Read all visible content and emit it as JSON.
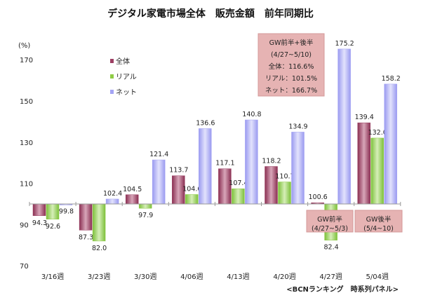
{
  "chart_data": {
    "type": "bar",
    "title": "デジタル家電市場全体　販売金額　前年同期比",
    "ylabel": "(%)",
    "ylim": [
      70,
      180
    ],
    "baseline": 100,
    "yticks": [
      70,
      90,
      110,
      130,
      150,
      170
    ],
    "legend_position": "top-left",
    "categories": [
      "3/16週",
      "3/23週",
      "3/30週",
      "4/06週",
      "4/13週",
      "4/20週",
      "4/27週",
      "5/04週"
    ],
    "series": [
      {
        "name": "全体",
        "color": "#9c3f63",
        "values": [
          94.3,
          87.3,
          104.5,
          113.7,
          117.1,
          118.2,
          100.6,
          139.4
        ]
      },
      {
        "name": "リアル",
        "color": "#8fcc45",
        "values": [
          92.6,
          82.0,
          97.9,
          104.6,
          107.4,
          110.7,
          82.4,
          132.0
        ]
      },
      {
        "name": "ネット",
        "color": "#a4a4f4",
        "values": [
          99.8,
          102.4,
          121.4,
          136.6,
          140.8,
          134.9,
          175.2,
          158.2
        ]
      }
    ],
    "annotations": {
      "gw_total": [
        "GW前半+後半",
        "(4/27~5/10)",
        "全体：116.6%",
        "リアル：101.5%",
        "ネット：166.7%"
      ],
      "gw_first": [
        "GW前半",
        "(4/27~5/3)"
      ],
      "gw_second": [
        "GW後半",
        "(5/4~10)"
      ]
    },
    "source": "<BCNランキング　時系列パネル>"
  }
}
